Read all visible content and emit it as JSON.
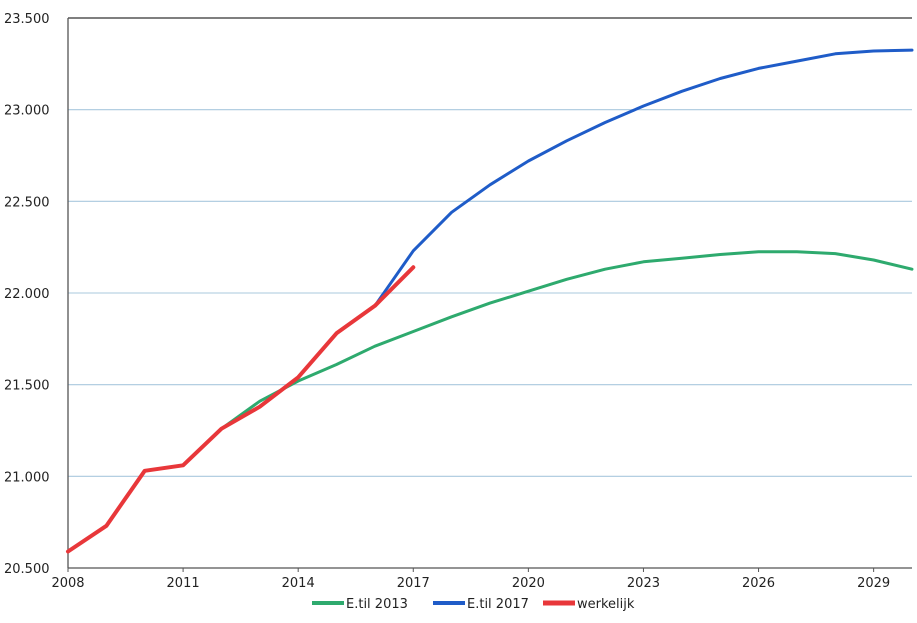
{
  "chart_data": {
    "type": "line",
    "title": "",
    "xlabel": "",
    "ylabel": "",
    "xlim": [
      2008,
      2030
    ],
    "ylim": [
      20500,
      23500
    ],
    "x_ticks": [
      2008,
      2011,
      2014,
      2017,
      2020,
      2023,
      2026,
      2029
    ],
    "x_tick_labels": [
      "2008",
      "2011",
      "2014",
      "2017",
      "2020",
      "2023",
      "2026",
      "2029"
    ],
    "y_ticks": [
      20500,
      21000,
      21500,
      22000,
      22500,
      23000,
      23500
    ],
    "y_tick_labels": [
      "20.500",
      "21.000",
      "21.500",
      "22.000",
      "22.500",
      "23.000",
      "23.500"
    ],
    "grid": "horizontal",
    "legend_position": "bottom-center",
    "series": [
      {
        "name": "E.til 2013",
        "color": "#2EAA6E",
        "x": [
          2012,
          2013,
          2014,
          2015,
          2016,
          2017,
          2018,
          2019,
          2020,
          2021,
          2022,
          2023,
          2024,
          2025,
          2026,
          2027,
          2028,
          2029,
          2030
        ],
        "values": [
          21260,
          21410,
          21520,
          21610,
          21710,
          21790,
          21870,
          21945,
          22010,
          22075,
          22130,
          22170,
          22190,
          22210,
          22225,
          22225,
          22215,
          22180,
          22130
        ]
      },
      {
        "name": "E.til 2017",
        "color": "#1F5CC8",
        "x": [
          2016,
          2017,
          2018,
          2019,
          2020,
          2021,
          2022,
          2023,
          2024,
          2025,
          2026,
          2027,
          2028,
          2029,
          2030
        ],
        "values": [
          21930,
          22230,
          22440,
          22590,
          22720,
          22830,
          22930,
          23020,
          23100,
          23170,
          23225,
          23265,
          23305,
          23320,
          23325
        ]
      },
      {
        "name": "werkelijk",
        "color": "#E8373A",
        "x": [
          2008,
          2009,
          2010,
          2011,
          2012,
          2013,
          2014,
          2015,
          2016,
          2017
        ],
        "values": [
          20590,
          20730,
          21030,
          21060,
          21260,
          21380,
          21540,
          21780,
          21930,
          22140
        ]
      }
    ]
  }
}
